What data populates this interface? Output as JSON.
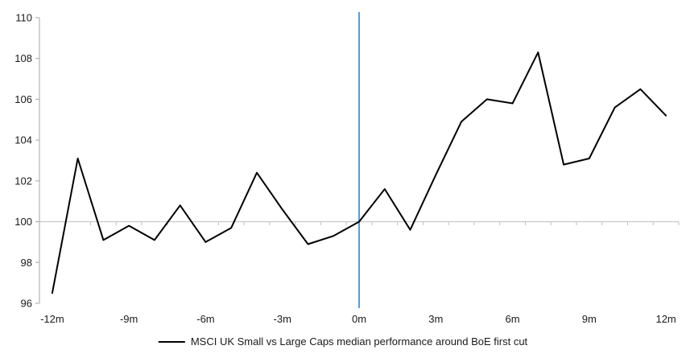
{
  "chart_data": {
    "type": "line",
    "title": "",
    "xlabel": "",
    "ylabel": "",
    "x_months": [
      -12,
      -11,
      -10,
      -9,
      -8,
      -7,
      -6,
      -5,
      -4,
      -3,
      -2,
      -1,
      0,
      1,
      2,
      3,
      4,
      5,
      6,
      7,
      8,
      9,
      10,
      11,
      12
    ],
    "series": [
      {
        "name": "MSCI UK Small vs Large Caps median performance around BoE first cut",
        "values": [
          96.5,
          103.1,
          99.1,
          99.8,
          99.1,
          100.8,
          99.0,
          99.7,
          102.4,
          100.6,
          98.9,
          99.3,
          100.0,
          101.6,
          99.6,
          102.3,
          104.9,
          106.0,
          105.8,
          108.3,
          102.8,
          103.1,
          105.6,
          106.5,
          105.2
        ]
      }
    ],
    "ylim": [
      96,
      110
    ],
    "y_ticks": [
      96,
      98,
      100,
      102,
      104,
      106,
      108,
      110
    ],
    "x_tick_labels": [
      "-12m",
      "-9m",
      "-6m",
      "-3m",
      "0m",
      "3m",
      "6m",
      "9m",
      "12m"
    ],
    "x_tick_months": [
      -12,
      -9,
      -6,
      -3,
      0,
      3,
      6,
      9,
      12
    ],
    "baseline_value": 100,
    "event_line_month": 0,
    "grid": "baseline-only",
    "legend_position": "bottom-center",
    "colors": {
      "series_line": "#000000",
      "event_line": "#5B9BD5",
      "axis_line": "#A6A6A6",
      "baseline_line": "#BFBFBF",
      "tick_text": "#1a1a1a"
    }
  },
  "legend": {
    "label": "MSCI UK Small vs Large Caps median performance around BoE first cut"
  }
}
